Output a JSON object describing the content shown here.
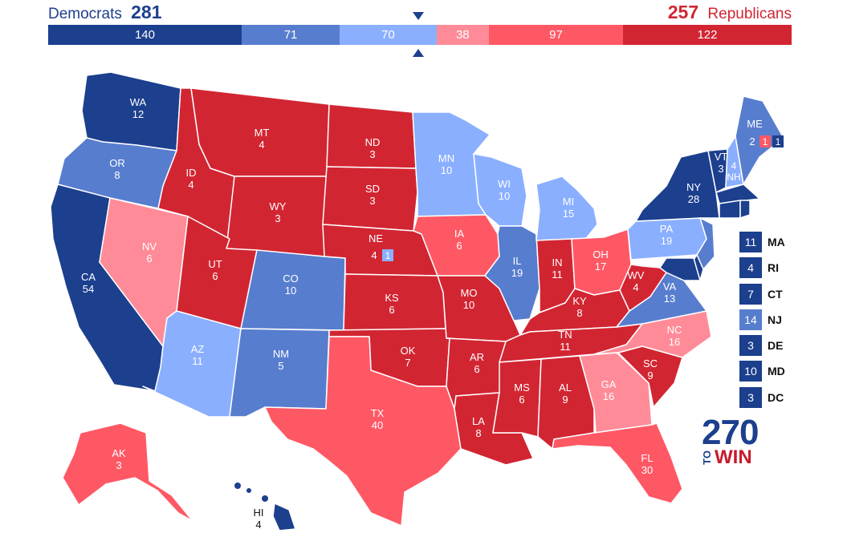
{
  "header": {
    "dem_label": "Democrats",
    "dem_total": "281",
    "rep_total": "257",
    "rep_label": "Republicans"
  },
  "tally": [
    {
      "value": "140",
      "color": "#1c3f8e",
      "votes": 140
    },
    {
      "value": "71",
      "color": "#577dce",
      "votes": 71
    },
    {
      "value": "70",
      "color": "#8aafff",
      "votes": 70
    },
    {
      "value": "38",
      "color": "#ff8b98",
      "votes": 38
    },
    {
      "value": "97",
      "color": "#ff5865",
      "votes": 97
    },
    {
      "value": "122",
      "color": "#d22532",
      "votes": 122
    }
  ],
  "colors": {
    "safe_d": "#1c3f8e",
    "likely_d": "#577dce",
    "lean_d": "#8aafff",
    "lean_r": "#ff8b98",
    "likely_r": "#ff5865",
    "safe_r": "#d22532"
  },
  "states": [
    {
      "abbr": "WA",
      "ev": "12",
      "rating": "safe_d"
    },
    {
      "abbr": "OR",
      "ev": "8",
      "rating": "likely_d"
    },
    {
      "abbr": "CA",
      "ev": "54",
      "rating": "safe_d"
    },
    {
      "abbr": "NV",
      "ev": "6",
      "rating": "lean_r"
    },
    {
      "abbr": "ID",
      "ev": "4",
      "rating": "safe_r"
    },
    {
      "abbr": "MT",
      "ev": "4",
      "rating": "safe_r"
    },
    {
      "abbr": "WY",
      "ev": "3",
      "rating": "safe_r"
    },
    {
      "abbr": "UT",
      "ev": "6",
      "rating": "safe_r"
    },
    {
      "abbr": "AZ",
      "ev": "11",
      "rating": "lean_d"
    },
    {
      "abbr": "CO",
      "ev": "10",
      "rating": "likely_d"
    },
    {
      "abbr": "NM",
      "ev": "5",
      "rating": "likely_d"
    },
    {
      "abbr": "ND",
      "ev": "3",
      "rating": "safe_r"
    },
    {
      "abbr": "SD",
      "ev": "3",
      "rating": "safe_r"
    },
    {
      "abbr": "NE",
      "ev": "4",
      "rating": "safe_r",
      "district_ev": "1",
      "district_rating": "lean_d"
    },
    {
      "abbr": "KS",
      "ev": "6",
      "rating": "safe_r"
    },
    {
      "abbr": "OK",
      "ev": "7",
      "rating": "safe_r"
    },
    {
      "abbr": "TX",
      "ev": "40",
      "rating": "likely_r"
    },
    {
      "abbr": "MN",
      "ev": "10",
      "rating": "lean_d"
    },
    {
      "abbr": "IA",
      "ev": "6",
      "rating": "likely_r"
    },
    {
      "abbr": "MO",
      "ev": "10",
      "rating": "safe_r"
    },
    {
      "abbr": "AR",
      "ev": "6",
      "rating": "safe_r"
    },
    {
      "abbr": "LA",
      "ev": "8",
      "rating": "safe_r"
    },
    {
      "abbr": "WI",
      "ev": "10",
      "rating": "lean_d"
    },
    {
      "abbr": "IL",
      "ev": "19",
      "rating": "likely_d"
    },
    {
      "abbr": "MI",
      "ev": "15",
      "rating": "lean_d"
    },
    {
      "abbr": "IN",
      "ev": "11",
      "rating": "safe_r"
    },
    {
      "abbr": "OH",
      "ev": "17",
      "rating": "likely_r"
    },
    {
      "abbr": "KY",
      "ev": "8",
      "rating": "safe_r"
    },
    {
      "abbr": "TN",
      "ev": "11",
      "rating": "safe_r"
    },
    {
      "abbr": "MS",
      "ev": "6",
      "rating": "safe_r"
    },
    {
      "abbr": "AL",
      "ev": "9",
      "rating": "safe_r"
    },
    {
      "abbr": "GA",
      "ev": "16",
      "rating": "lean_r"
    },
    {
      "abbr": "FL",
      "ev": "30",
      "rating": "likely_r"
    },
    {
      "abbr": "SC",
      "ev": "9",
      "rating": "safe_r"
    },
    {
      "abbr": "NC",
      "ev": "16",
      "rating": "lean_r"
    },
    {
      "abbr": "VA",
      "ev": "13",
      "rating": "likely_d"
    },
    {
      "abbr": "WV",
      "ev": "4",
      "rating": "safe_r"
    },
    {
      "abbr": "PA",
      "ev": "19",
      "rating": "lean_d"
    },
    {
      "abbr": "NY",
      "ev": "28",
      "rating": "safe_d"
    },
    {
      "abbr": "VT",
      "ev": "3",
      "rating": "safe_d"
    },
    {
      "abbr": "NH",
      "ev": "4",
      "rating": "lean_d"
    },
    {
      "abbr": "ME",
      "ev": "2",
      "rating": "likely_d",
      "district_ev": "1",
      "district_rating": "likely_r",
      "district2_ev": "1",
      "district2_rating": "safe_d"
    },
    {
      "abbr": "AK",
      "ev": "3",
      "rating": "likely_r"
    },
    {
      "abbr": "HI",
      "ev": "4",
      "rating": "safe_d"
    }
  ],
  "small_states": [
    {
      "abbr": "MA",
      "ev": "11",
      "color": "#1c3f8e"
    },
    {
      "abbr": "RI",
      "ev": "4",
      "color": "#1c3f8e"
    },
    {
      "abbr": "CT",
      "ev": "7",
      "color": "#1c3f8e"
    },
    {
      "abbr": "NJ",
      "ev": "14",
      "color": "#577dce"
    },
    {
      "abbr": "DE",
      "ev": "3",
      "color": "#1c3f8e"
    },
    {
      "abbr": "MD",
      "ev": "10",
      "color": "#1c3f8e"
    },
    {
      "abbr": "DC",
      "ev": "3",
      "color": "#1c3f8e"
    }
  ],
  "logo": {
    "number": "270",
    "to": "TO",
    "win": "WIN"
  }
}
